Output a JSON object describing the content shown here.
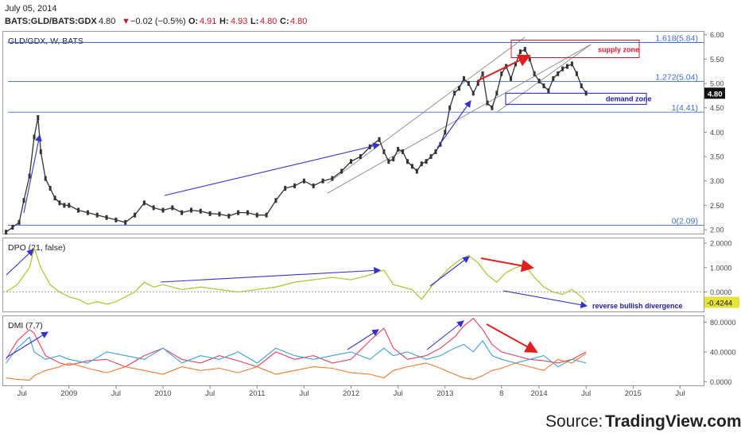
{
  "header": {
    "date": "July 05, 2014",
    "symbol": "BATS:GLD/BATS:GDX",
    "last": "4.80",
    "change_arrow": "▼",
    "change": "−0.02 (−0.5%)",
    "o_label": "O:",
    "o_value": "4.91",
    "h_label": "H:",
    "h_value": "4.93",
    "l_label": "L:",
    "l_value": "4.80",
    "c_label": "C:",
    "c_value": "4.80"
  },
  "source": {
    "label": "Source:",
    "name": "TradingView.com"
  },
  "colors": {
    "price_line": "#333333",
    "fib_line": "#3a6fd0",
    "channel_line": "#8a8a8a",
    "arrow_blue": "#3333cc",
    "arrow_red": "#e02020",
    "dpo": "#b6c43a",
    "dmi_red": "#e8415c",
    "dmi_blue": "#3aa0e0",
    "dmi_orange": "#f07a2a",
    "supply": "#d9192e",
    "demand": "#1a1ab0"
  },
  "chart_data": [
    {
      "type": "line",
      "title": "GLD/GDX, W, BATS",
      "x_ticks": [
        "Jul",
        "2009",
        "Jul",
        "2010",
        "Jul",
        "2011",
        "Jul",
        "2012",
        "Jul",
        "2013",
        "8",
        "2014",
        "Jul",
        "2015",
        "Jul"
      ],
      "x_tick_dates": [
        2008.5,
        2009.0,
        2009.5,
        2010.0,
        2010.5,
        2011.0,
        2011.5,
        2012.0,
        2012.5,
        2013.0,
        2013.6,
        2014.0,
        2014.5,
        2015.0,
        2015.5
      ],
      "y_ticks": [
        "6.00",
        "5.50",
        "5.00",
        "4.50",
        "4.00",
        "3.50",
        "3.00",
        "2.50",
        "2.00"
      ],
      "ylim": [
        1.92,
        6.06
      ],
      "last_price_label": "4.80",
      "series": [
        {
          "x": [
            2008.33,
            2008.4,
            2008.47,
            2008.52,
            2008.58,
            2008.63,
            2008.67,
            2008.7,
            2008.75,
            2008.8,
            2008.85,
            2008.9,
            2008.95,
            2009.0,
            2009.1,
            2009.2,
            2009.3,
            2009.4,
            2009.5,
            2009.6,
            2009.7,
            2009.8,
            2009.9,
            2010.0,
            2010.1,
            2010.2,
            2010.3,
            2010.4,
            2010.5,
            2010.6,
            2010.7,
            2010.8,
            2010.9,
            2011.0,
            2011.1,
            2011.2,
            2011.3,
            2011.4,
            2011.5,
            2011.6,
            2011.7,
            2011.8,
            2011.9,
            2012.0,
            2012.1,
            2012.2,
            2012.3,
            2012.35,
            2012.4,
            2012.45,
            2012.5,
            2012.55,
            2012.6,
            2012.65,
            2012.7,
            2012.75,
            2012.8,
            2012.85,
            2012.9,
            2012.95,
            2013.0,
            2013.05,
            2013.1,
            2013.15,
            2013.2,
            2013.25,
            2013.3,
            2013.35,
            2013.4,
            2013.45,
            2013.5,
            2013.55,
            2013.6,
            2013.65,
            2013.7,
            2013.75,
            2013.8,
            2013.85,
            2013.9,
            2013.95,
            2014.0,
            2014.05,
            2014.1,
            2014.15,
            2014.2,
            2014.25,
            2014.3,
            2014.35,
            2014.4,
            2014.45,
            2014.5
          ],
          "y": [
            1.95,
            2.05,
            2.15,
            2.6,
            3.1,
            3.9,
            4.3,
            3.6,
            3.05,
            2.85,
            2.65,
            2.55,
            2.5,
            2.5,
            2.4,
            2.35,
            2.3,
            2.25,
            2.2,
            2.15,
            2.3,
            2.55,
            2.45,
            2.4,
            2.45,
            2.35,
            2.4,
            2.38,
            2.33,
            2.32,
            2.28,
            2.35,
            2.35,
            2.3,
            2.3,
            2.6,
            2.85,
            2.9,
            3.0,
            2.9,
            3.0,
            3.05,
            3.2,
            3.4,
            3.5,
            3.7,
            3.85,
            3.6,
            3.4,
            3.45,
            3.65,
            3.6,
            3.4,
            3.3,
            3.2,
            3.35,
            3.4,
            3.5,
            3.6,
            3.75,
            4.0,
            4.5,
            4.8,
            4.9,
            5.1,
            5.0,
            4.8,
            5.0,
            5.2,
            4.6,
            4.5,
            4.8,
            5.2,
            5.35,
            5.1,
            5.4,
            5.65,
            5.7,
            5.5,
            5.2,
            5.05,
            4.95,
            4.85,
            5.1,
            5.2,
            5.3,
            5.35,
            5.4,
            5.2,
            4.95,
            4.8
          ]
        }
      ],
      "fib_levels": [
        {
          "ratio_label": "1.618(5.84)",
          "value": 5.84
        },
        {
          "ratio_label": "1.272(5.04)",
          "value": 5.04
        },
        {
          "ratio_label": "1(4.41)",
          "value": 4.41
        },
        {
          "ratio_label": "0(2.09)",
          "value": 2.09
        }
      ],
      "annotations": {
        "supply_zone": "supply zone",
        "demand_zone": "demand zone"
      }
    },
    {
      "type": "line",
      "title": "DPO (21, false)",
      "y_ticks": [
        "2.0000",
        "1.0000",
        "0.0000"
      ],
      "ylim": [
        -0.8,
        2.2
      ],
      "last_value_label": "-0.4244",
      "annotation": "reverse bullish divergence",
      "series": [
        {
          "x": [
            2008.33,
            2008.45,
            2008.58,
            2008.63,
            2008.7,
            2008.8,
            2008.9,
            2009.0,
            2009.1,
            2009.2,
            2009.3,
            2009.4,
            2009.5,
            2009.6,
            2009.7,
            2009.8,
            2009.9,
            2010.0,
            2010.2,
            2010.4,
            2010.6,
            2010.8,
            2011.0,
            2011.2,
            2011.4,
            2011.6,
            2011.8,
            2012.0,
            2012.2,
            2012.35,
            2012.45,
            2012.55,
            2012.65,
            2012.75,
            2012.85,
            2012.95,
            2013.05,
            2013.15,
            2013.25,
            2013.35,
            2013.45,
            2013.55,
            2013.65,
            2013.75,
            2013.85,
            2013.95,
            2014.05,
            2014.15,
            2014.25,
            2014.35,
            2014.45,
            2014.5
          ],
          "y": [
            0.0,
            0.3,
            1.0,
            1.8,
            1.0,
            0.3,
            0.0,
            -0.2,
            -0.3,
            -0.5,
            -0.4,
            -0.5,
            -0.4,
            -0.2,
            0.0,
            0.4,
            0.2,
            0.3,
            0.1,
            0.2,
            0.1,
            0.0,
            0.1,
            0.2,
            0.4,
            0.5,
            0.6,
            0.5,
            0.7,
            0.9,
            0.3,
            0.2,
            0.1,
            -0.3,
            0.2,
            0.6,
            1.0,
            1.3,
            1.5,
            1.2,
            0.7,
            0.4,
            0.8,
            1.0,
            1.1,
            0.6,
            0.2,
            0.0,
            -0.1,
            0.1,
            -0.2,
            -0.42
          ]
        }
      ]
    },
    {
      "type": "line",
      "title": "DMI (7,7)",
      "y_ticks": [
        "80.0000",
        "40.0000",
        "0.0000"
      ],
      "ylim": [
        -5,
        88
      ],
      "series": [
        {
          "x": [
            2008.33,
            2008.45,
            2008.58,
            2008.63,
            2008.75,
            2008.9,
            2009.0,
            2009.2,
            2009.4,
            2009.6,
            2009.8,
            2010.0,
            2010.2,
            2010.4,
            2010.6,
            2010.8,
            2011.0,
            2011.2,
            2011.4,
            2011.6,
            2011.8,
            2012.0,
            2012.2,
            2012.35,
            2012.45,
            2012.6,
            2012.8,
            2012.95,
            2013.1,
            2013.2,
            2013.3,
            2013.4,
            2013.5,
            2013.6,
            2013.75,
            2013.9,
            2014.05,
            2014.2,
            2014.35,
            2014.5
          ],
          "y": [
            30,
            55,
            70,
            65,
            35,
            25,
            22,
            28,
            30,
            20,
            35,
            45,
            30,
            25,
            35,
            28,
            20,
            40,
            30,
            35,
            25,
            30,
            55,
            72,
            45,
            30,
            35,
            45,
            60,
            75,
            85,
            70,
            50,
            40,
            35,
            30,
            28,
            25,
            30,
            40
          ]
        },
        {
          "x": [
            2008.33,
            2008.45,
            2008.58,
            2008.63,
            2008.75,
            2008.9,
            2009.0,
            2009.2,
            2009.4,
            2009.6,
            2009.8,
            2010.0,
            2010.2,
            2010.4,
            2010.6,
            2010.8,
            2011.0,
            2011.2,
            2011.4,
            2011.6,
            2011.8,
            2012.0,
            2012.2,
            2012.35,
            2012.45,
            2012.6,
            2012.8,
            2012.95,
            2013.1,
            2013.2,
            2013.3,
            2013.4,
            2013.5,
            2013.6,
            2013.75,
            2013.9,
            2014.05,
            2014.2,
            2014.35,
            2014.5
          ],
          "y": [
            25,
            45,
            60,
            40,
            30,
            35,
            30,
            25,
            40,
            35,
            30,
            45,
            25,
            35,
            30,
            40,
            25,
            45,
            35,
            30,
            35,
            40,
            30,
            45,
            35,
            40,
            30,
            35,
            45,
            50,
            40,
            55,
            35,
            30,
            25,
            30,
            35,
            20,
            30,
            25
          ]
        },
        {
          "x": [
            2008.33,
            2008.45,
            2008.58,
            2008.63,
            2008.75,
            2008.9,
            2009.0,
            2009.2,
            2009.4,
            2009.6,
            2009.8,
            2010.0,
            2010.2,
            2010.4,
            2010.6,
            2010.8,
            2011.0,
            2011.2,
            2011.4,
            2011.6,
            2011.8,
            2012.0,
            2012.2,
            2012.35,
            2012.45,
            2012.6,
            2012.8,
            2012.95,
            2013.1,
            2013.2,
            2013.3,
            2013.4,
            2013.5,
            2013.6,
            2013.75,
            2013.9,
            2014.05,
            2014.2,
            2014.35,
            2014.5
          ],
          "y": [
            5,
            3,
            2,
            8,
            15,
            20,
            25,
            18,
            12,
            20,
            15,
            10,
            20,
            15,
            18,
            12,
            20,
            10,
            15,
            20,
            18,
            12,
            10,
            5,
            15,
            20,
            25,
            18,
            10,
            5,
            3,
            8,
            15,
            18,
            25,
            20,
            15,
            30,
            25,
            38
          ]
        }
      ]
    }
  ]
}
